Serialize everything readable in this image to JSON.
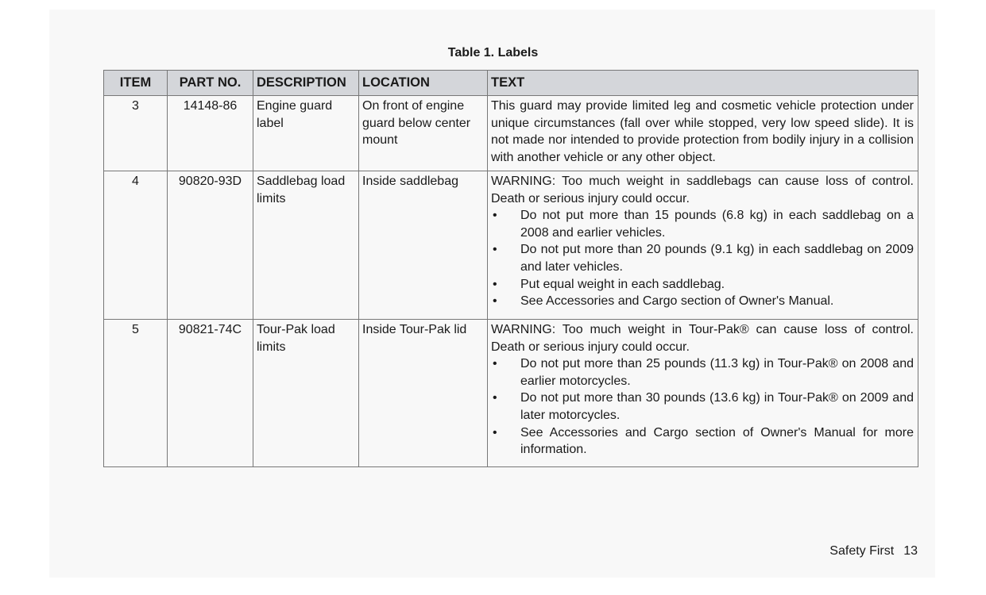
{
  "title": "Table 1. Labels",
  "headers": [
    "ITEM",
    "PART NO.",
    "DESCRIPTION",
    "LOCATION",
    "TEXT"
  ],
  "rows": [
    {
      "item": "3",
      "part": "14148-86",
      "description": "Engine guard label",
      "location": "On front of engine guard below center mount",
      "text": "This guard may provide limited leg and cosmetic vehicle protection under unique circumstances (fall over while stopped, very low speed slide). It is not made nor intended to provide protection from bodily injury in a collision with another vehicle or any other object.",
      "bullets": []
    },
    {
      "item": "4",
      "part": "90820-93D",
      "description": "Saddlebag load limits",
      "location": "Inside saddlebag",
      "text": "WARNING: Too much weight in saddlebags can cause loss of control. Death or serious injury could occur.",
      "bullets": [
        "Do not put more than 15 pounds (6.8 kg) in each saddlebag on a 2008 and earlier vehicles.",
        "Do not put more than 20 pounds (9.1 kg) in each saddlebag on 2009 and later vehicles.",
        "Put equal weight in each saddlebag.",
        "See Accessories and Cargo section of Owner's Manual."
      ]
    },
    {
      "item": "5",
      "part": "90821-74C",
      "description": "Tour-Pak load limits",
      "location": "Inside Tour-Pak lid",
      "text": "WARNING: Too much weight in Tour-Pak® can cause loss of control. Death or serious injury could occur.",
      "bullets": [
        "Do not put more than 25 pounds (11.3 kg) in Tour-Pak® on 2008 and earlier motorcycles.",
        "Do not put more than 30 pounds (13.6 kg) in Tour-Pak® on 2009 and later motorcycles.",
        "See Accessories and Cargo section of Owner's Manual for more information."
      ]
    }
  ],
  "bullet_glyph": "•",
  "footer": {
    "section": "Safety First",
    "page": "13"
  }
}
